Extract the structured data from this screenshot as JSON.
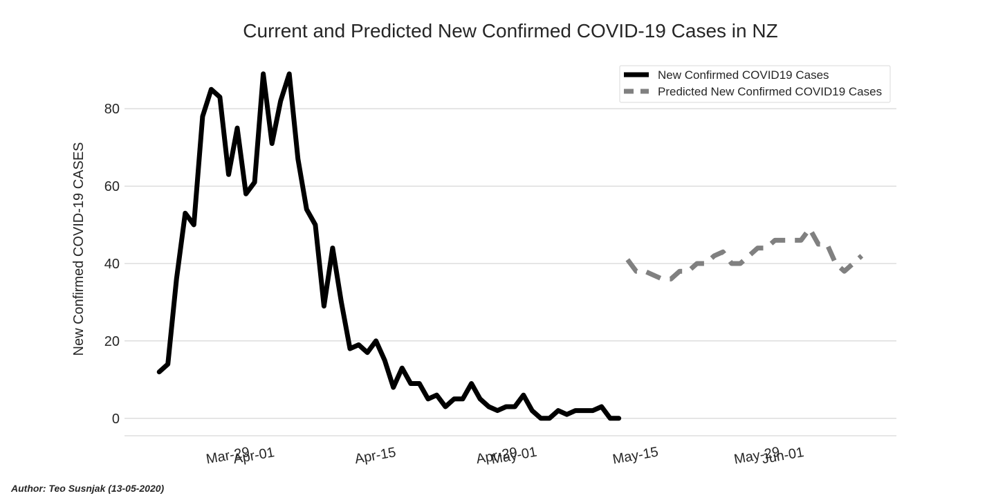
{
  "chart_data": {
    "type": "line",
    "title": "Current and Predicted New Confirmed COVID-19 Cases in NZ",
    "xlabel": "",
    "ylabel": "New Confirmed COVID-19 CASES",
    "ylim": [
      -4.5,
      92
    ],
    "yticks": [
      0,
      20,
      40,
      60,
      80
    ],
    "grid": true,
    "legend_position": "top-right",
    "x_unit": "day offset from Mar-29-2020",
    "xlim": [
      -12,
      77
    ],
    "xticks": [
      {
        "label": "Mar-29",
        "day": 0
      },
      {
        "label": "Apr-01",
        "day": 3
      },
      {
        "label": "Apr-15",
        "day": 17
      },
      {
        "label": "Apr-29",
        "day": 31
      },
      {
        "label": "May-01",
        "day": 33
      },
      {
        "label": "May-15",
        "day": 47
      },
      {
        "label": "May-29",
        "day": 61
      },
      {
        "label": "Jun-01",
        "day": 64
      }
    ],
    "series": [
      {
        "name": "New Confirmed COVID19 Cases",
        "color": "#000000",
        "style": "solid",
        "x_start_day": -8,
        "values": [
          12,
          14,
          36,
          53,
          50,
          78,
          85,
          83,
          63,
          75,
          58,
          61,
          89,
          71,
          82,
          89,
          67,
          54,
          50,
          29,
          44,
          30,
          18,
          19,
          17,
          20,
          15,
          8,
          13,
          9,
          9,
          5,
          6,
          3,
          5,
          5,
          9,
          5,
          3,
          2,
          3,
          3,
          6,
          2,
          0,
          0,
          2,
          1,
          2,
          2,
          2,
          3,
          0,
          0
        ]
      },
      {
        "name": "Predicted New Confirmed COVID19 Cases",
        "color": "#808080",
        "style": "dashed",
        "x_start_day": 46,
        "values": [
          41,
          38,
          38,
          37,
          36,
          36,
          38,
          38,
          40,
          40,
          42,
          43,
          40,
          40,
          42,
          44,
          44,
          46,
          46,
          46,
          46,
          49,
          45,
          45,
          40,
          38,
          40,
          42
        ]
      }
    ]
  },
  "footer": {
    "author": "Author: Teo Susnjak (13-05-2020)"
  }
}
